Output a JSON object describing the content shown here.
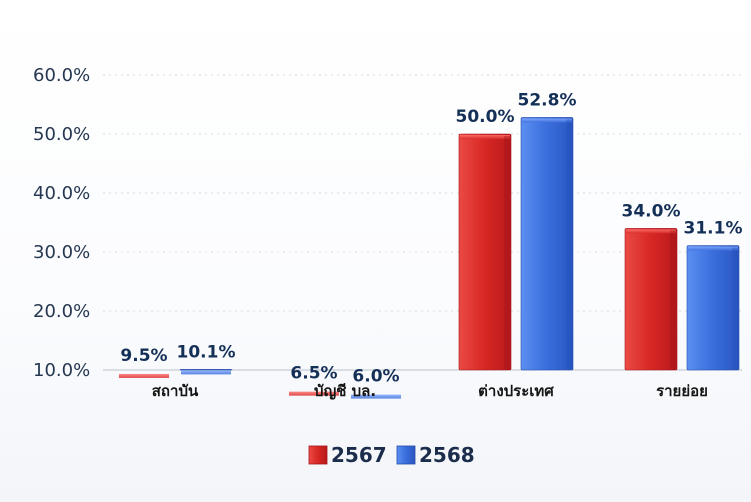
{
  "chart_data": {
    "type": "bar",
    "categories": [
      "สถาบัน",
      "บัญชี บล.",
      "ต่างประเทศ",
      "รายย่อย"
    ],
    "series": [
      {
        "name": "2567",
        "values": [
          9.5,
          6.5,
          50.0,
          34.0
        ],
        "labels": [
          "9.5%",
          "6.5%",
          "50.0%",
          "34.0%"
        ]
      },
      {
        "name": "2568",
        "values": [
          10.1,
          6.0,
          52.8,
          31.1
        ],
        "labels": [
          "10.1%",
          "6.0%",
          "52.8%",
          "31.1%"
        ]
      }
    ],
    "ylim": [
      10,
      60
    ],
    "yticks": [
      10,
      20,
      30,
      40,
      50,
      60
    ],
    "ytick_labels": [
      "10.0%",
      "20.0%",
      "30.0%",
      "40.0%",
      "50.0%",
      "60.0%"
    ],
    "grid": true,
    "legend_position": "bottom-center"
  },
  "colors": {
    "series_2567": "#d92a28",
    "series_2568": "#3b6fdc",
    "grid": "#d7dce4",
    "axis": "#c6ccd6"
  },
  "legend": {
    "items": [
      "2567",
      "2568"
    ]
  }
}
